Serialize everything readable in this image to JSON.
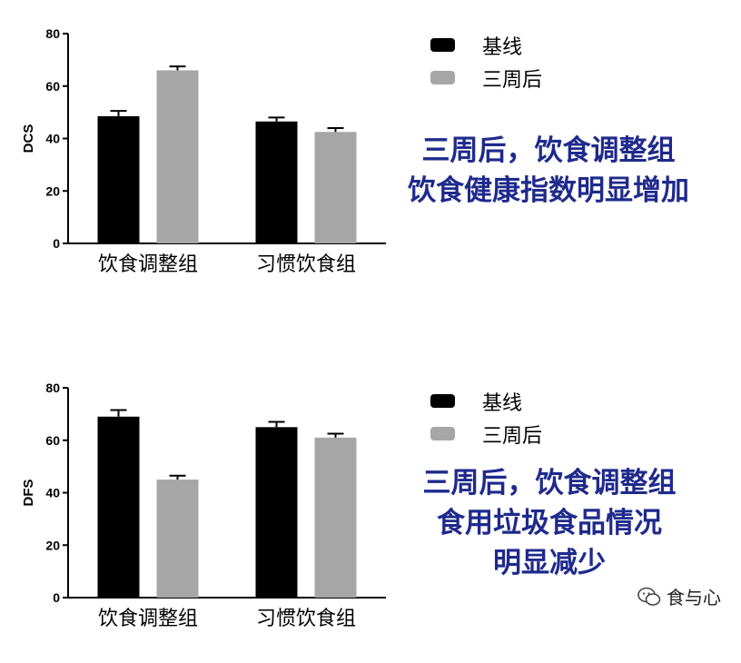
{
  "chart_data": [
    {
      "type": "bar",
      "ylabel": "DCS",
      "ylim": [
        0,
        80
      ],
      "yticks": [
        "0",
        "20",
        "40",
        "60",
        "80"
      ],
      "categories": [
        "饮食调整组",
        "习惯饮食组"
      ],
      "series": [
        {
          "name": "基线",
          "values": [
            48.5,
            46.5
          ],
          "errors": [
            2.0,
            1.5
          ],
          "color": "#000000"
        },
        {
          "name": "三周后",
          "values": [
            66,
            42.5
          ],
          "errors": [
            1.5,
            1.5
          ],
          "color": "#a6a6a6"
        }
      ],
      "legend_position": "top-right",
      "annotation": [
        "三周后，饮食调整组",
        "饮食健康指数明显增加"
      ]
    },
    {
      "type": "bar",
      "ylabel": "DFS",
      "ylim": [
        0,
        80
      ],
      "yticks": [
        "0",
        "20",
        "40",
        "60",
        "80"
      ],
      "categories": [
        "饮食调整组",
        "习惯饮食组"
      ],
      "series": [
        {
          "name": "基线",
          "values": [
            69,
            65
          ],
          "errors": [
            2.5,
            2.0
          ],
          "color": "#000000"
        },
        {
          "name": "三周后",
          "values": [
            45,
            61
          ],
          "errors": [
            1.5,
            1.5
          ],
          "color": "#a6a6a6"
        }
      ],
      "legend_position": "top-right",
      "annotation": [
        "三周后，饮食调整组",
        "食用垃圾食品情况",
        "明显减少"
      ]
    }
  ],
  "watermark": "食与心",
  "colors": {
    "caption": "#1f2a8c",
    "baseline": "#000000",
    "after": "#a6a6a6"
  }
}
